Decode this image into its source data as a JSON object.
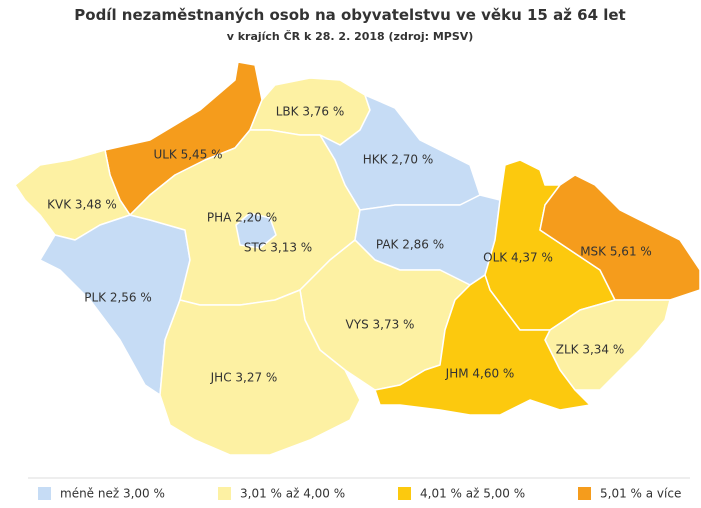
{
  "header": {
    "title": "Podíl nezaměstnaných osob na obyvatelstvu ve věku 15 až 64 let",
    "subtitle": "v krajích ČR k 28. 2. 2018 (zdroj: MPSV)"
  },
  "map": {
    "regions": [
      {
        "label": "ULK 5,45 %",
        "color": "#f59c1c"
      },
      {
        "label": "LBK 3,76 %",
        "color": "#fdf1a3"
      },
      {
        "label": "HKK 2,70 %",
        "color": "#c6dcf5"
      },
      {
        "label": "KVK 3,48 %",
        "color": "#fdf1a3"
      },
      {
        "label": "PLK 2,56 %",
        "color": "#c6dcf5"
      },
      {
        "label": "STC 3,13 %",
        "color": "#fdf1a3"
      },
      {
        "label": "PHA 2,20 %",
        "color": "#c6dcf5"
      },
      {
        "label": "PAK 2,86 %",
        "color": "#c6dcf5"
      },
      {
        "label": "VYS 3,73 %",
        "color": "#fdf1a3"
      },
      {
        "label": "JHC 3,27 %",
        "color": "#fdf1a3"
      },
      {
        "label": "OLK 4,37 %",
        "color": "#fcc90e"
      },
      {
        "label": "MSK 5,61 %",
        "color": "#f59c1c"
      },
      {
        "label": "ZLK 3,34 %",
        "color": "#fdf1a3"
      },
      {
        "label": "JHM 4,60 %",
        "color": "#fcc90e"
      }
    ]
  },
  "legend": {
    "items": [
      {
        "label": "méně než 3,00 %",
        "color": "#c6dcf5"
      },
      {
        "label": "3,01 % až 4,00 %",
        "color": "#fdf1a3"
      },
      {
        "label": "4,01 % až 5,00 %",
        "color": "#fcc90e"
      },
      {
        "label": "5,01 % a více",
        "color": "#f59c1c"
      }
    ]
  }
}
